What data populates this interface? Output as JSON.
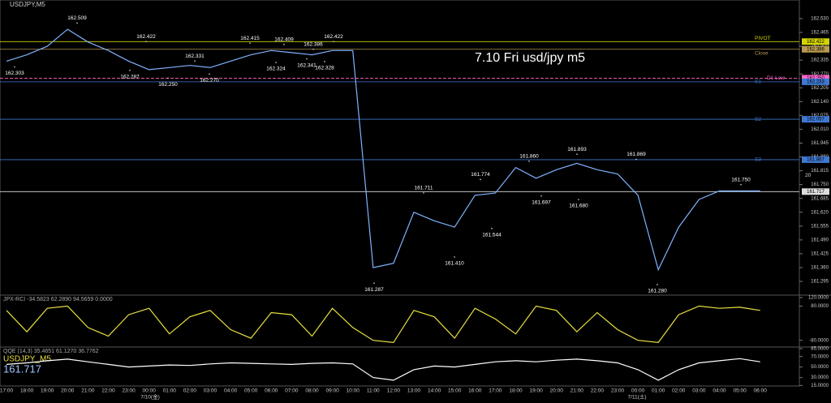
{
  "header": {
    "symbol": "USDJPY,M5",
    "note": "7.10 Fri usd/jpy m5"
  },
  "chart_data": [
    {
      "type": "line",
      "color": "#7fb2ff",
      "categories": [
        "17:00",
        "18:00",
        "19:00",
        "20:00",
        "21:00",
        "22:00",
        "23:00",
        "00:00",
        "01:00",
        "02:00",
        "03:00",
        "04:00",
        "05:00",
        "06:00",
        "07:00",
        "08:00",
        "09:00",
        "10:00",
        "11:00",
        "12:00",
        "13:00",
        "14:00",
        "15:00",
        "16:00",
        "17:00",
        "18:00",
        "19:00",
        "20:00",
        "21:00",
        "22:00",
        "23:00",
        "00:00",
        "01:00",
        "02:00",
        "03:00",
        "04:00",
        "05:00",
        "06:00"
      ],
      "values": [
        162.33,
        162.36,
        162.4,
        162.48,
        162.42,
        162.38,
        162.33,
        162.29,
        162.3,
        162.31,
        162.3,
        162.33,
        162.36,
        162.38,
        162.37,
        162.36,
        162.38,
        162.38,
        161.36,
        161.38,
        161.62,
        161.58,
        161.55,
        161.7,
        161.71,
        161.83,
        161.78,
        161.82,
        161.85,
        161.82,
        161.8,
        161.7,
        161.35,
        161.55,
        161.68,
        161.72,
        161.72,
        161.72
      ],
      "dates": [
        "7/10(金)",
        "7/11(土)"
      ],
      "ylim": [
        161.238,
        162.587
      ],
      "yticks": [
        {
          "value": 162.53,
          "label": "162.530"
        },
        {
          "value": 162.465,
          "label": "162.465"
        },
        {
          "value": 162.4,
          "label": "162.400"
        },
        {
          "value": 162.335,
          "label": "162.335"
        },
        {
          "value": 162.27,
          "label": "162.270"
        },
        {
          "value": 162.205,
          "label": "162.205"
        },
        {
          "value": 162.14,
          "label": "162.140"
        },
        {
          "value": 162.075,
          "label": "162.075"
        },
        {
          "value": 162.01,
          "label": "162.010"
        },
        {
          "value": 161.945,
          "label": "161.945"
        },
        {
          "value": 161.88,
          "label": "161.880"
        },
        {
          "value": 161.815,
          "label": "161.815"
        },
        {
          "value": 161.75,
          "label": "161.750"
        },
        {
          "value": 161.685,
          "label": "161.685"
        },
        {
          "value": 161.62,
          "label": "161.620"
        },
        {
          "value": 161.555,
          "label": "161.555"
        },
        {
          "value": 161.49,
          "label": "161.490"
        },
        {
          "value": 161.425,
          "label": "161.425"
        },
        {
          "value": 161.36,
          "label": "161.360"
        },
        {
          "value": 161.295,
          "label": "161.295"
        }
      ],
      "annotations": [
        {
          "value": 162.303,
          "label": "162.303"
        },
        {
          "value": 162.509,
          "label": "162.509"
        },
        {
          "value": 162.422,
          "label": "162.422"
        },
        {
          "value": 162.287,
          "label": "162.287"
        },
        {
          "value": 162.25,
          "label": "162.250"
        },
        {
          "value": 162.331,
          "label": "162.331"
        },
        {
          "value": 162.27,
          "label": "162.270"
        },
        {
          "value": 162.415,
          "label": "162.415"
        },
        {
          "value": 162.324,
          "label": "162.324"
        },
        {
          "value": 162.409,
          "label": "162.409"
        },
        {
          "value": 162.386,
          "label": "162.386"
        },
        {
          "value": 162.341,
          "label": "162.341"
        },
        {
          "value": 162.328,
          "label": "162.328"
        },
        {
          "value": 162.422,
          "label": "162.422"
        },
        {
          "value": 161.287,
          "label": "161.287"
        },
        {
          "value": 161.711,
          "label": "161.711"
        },
        {
          "value": 161.774,
          "label": "161.774"
        },
        {
          "value": 161.41,
          "label": "161.410"
        },
        {
          "value": 161.544,
          "label": "161.544"
        },
        {
          "value": 161.86,
          "label": "161.860"
        },
        {
          "value": 161.697,
          "label": "161.697"
        },
        {
          "value": 161.893,
          "label": "161.893"
        },
        {
          "value": 161.68,
          "label": "161.680"
        },
        {
          "value": 161.869,
          "label": "161.869"
        },
        {
          "value": 161.28,
          "label": "161.280"
        },
        {
          "value": 161.75,
          "label": "161.750"
        }
      ],
      "levels": [
        {
          "name": "PIVOT",
          "value": 162.422,
          "label": "162.422",
          "color": "#d4d400"
        },
        {
          "name": "Close",
          "value": 162.386,
          "label": "162.386",
          "color": "#b89a50"
        },
        {
          "name": "D1 Low",
          "value": 162.25,
          "label": "162.250",
          "color": "#ff66cc"
        },
        {
          "name": "S1",
          "value": 162.233,
          "label": "162.233",
          "color": "#3f78d0"
        },
        {
          "name": "S2",
          "value": 162.057,
          "label": "162.057",
          "color": "#3f78d0"
        },
        {
          "name": "S3",
          "value": 161.867,
          "label": "161.867",
          "color": "#3f78d0"
        },
        {
          "name": "20",
          "value": 161.717,
          "label": "161.717",
          "color": "#dddddd"
        }
      ]
    },
    {
      "type": "line",
      "title": "JPX-RCI -34.5823 62.2890 94.5659 0.0000",
      "color": "#e8e040",
      "values": [
        60,
        -40,
        70,
        80,
        -20,
        -60,
        40,
        70,
        -50,
        30,
        60,
        -30,
        -70,
        50,
        40,
        -60,
        70,
        -20,
        -80,
        -90,
        60,
        30,
        -70,
        70,
        20,
        -50,
        80,
        60,
        -40,
        50,
        -30,
        -80,
        -90,
        40,
        80,
        70,
        75,
        60
      ],
      "ylim": [
        -100,
        120
      ],
      "yticks": [
        {
          "value": 120,
          "label": "120.0000"
        },
        {
          "value": 80,
          "label": "80.0000"
        },
        {
          "value": -80,
          "label": "-80.0000"
        }
      ]
    },
    {
      "type": "line",
      "title": "QQE (14,3) 35.4651 61.1270 36.7762",
      "subtitle": "USDJPY_M5",
      "last": "161.717",
      "color": "#ffffff",
      "values": [
        55,
        58,
        62,
        65,
        60,
        55,
        50,
        52,
        54,
        53,
        56,
        58,
        57,
        56,
        55,
        57,
        58,
        56,
        30,
        25,
        45,
        52,
        50,
        55,
        60,
        62,
        60,
        63,
        65,
        62,
        58,
        45,
        25,
        45,
        58,
        62,
        66,
        60
      ],
      "ylim": [
        14,
        88
      ],
      "yticks": [
        {
          "value": 85,
          "label": "85.0000"
        },
        {
          "value": 70,
          "label": "70.0000"
        },
        {
          "value": 50,
          "label": "50.0000"
        },
        {
          "value": 30,
          "label": "30.0000"
        },
        {
          "value": 15,
          "label": "15.0000"
        }
      ]
    }
  ]
}
